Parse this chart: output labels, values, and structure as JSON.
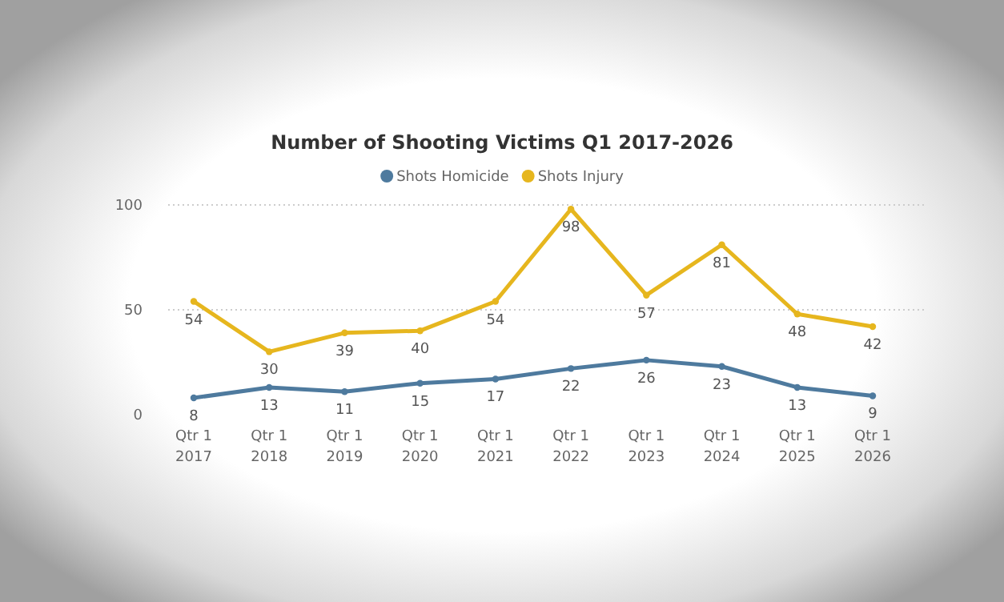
{
  "chart_data": {
    "type": "line",
    "title": "Number of Shooting Victims Q1 2017-2026",
    "categories": [
      "Qtr 1 2017",
      "Qtr 1 2018",
      "Qtr 1 2019",
      "Qtr 1 2020",
      "Qtr 1 2021",
      "Qtr 1 2022",
      "Qtr 1 2023",
      "Qtr 1 2024",
      "Qtr 1 2025",
      "Qtr 1 2026"
    ],
    "series": [
      {
        "name": "Shots Homicide",
        "color": "#4e7a9e",
        "values": [
          8,
          13,
          11,
          15,
          17,
          22,
          26,
          23,
          13,
          9
        ]
      },
      {
        "name": "Shots Injury",
        "color": "#e6b61e",
        "values": [
          54,
          30,
          39,
          40,
          54,
          98,
          57,
          81,
          48,
          42
        ]
      }
    ],
    "ylim": [
      0,
      100
    ],
    "yticks": [
      0,
      50,
      100
    ],
    "grid": "y",
    "legend": "top",
    "data_labels": true,
    "marker": "circle",
    "line_style": "solid"
  }
}
